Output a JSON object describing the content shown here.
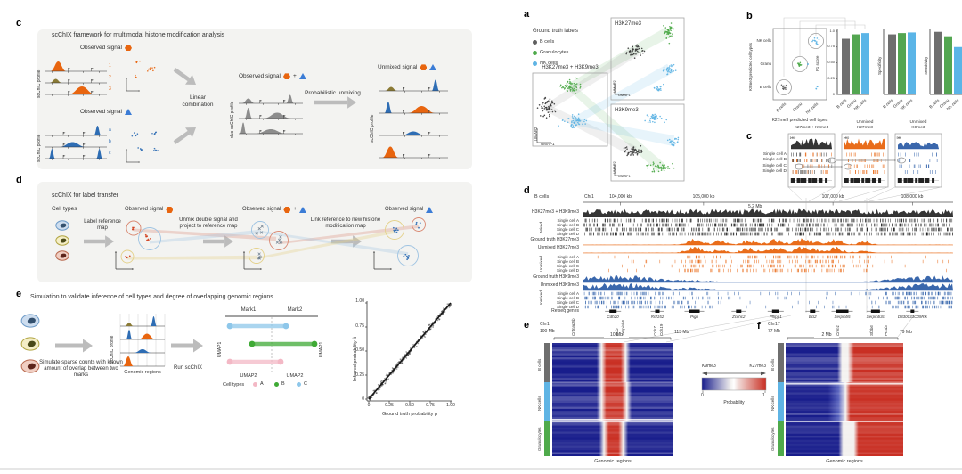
{
  "colors": {
    "orange": "#e8650f",
    "blue": "#3b7cd6",
    "mid_blue": "#2e6db4",
    "track_blue": "#2f5fa8",
    "olive": "#8a7a35",
    "green": "#4faa4b",
    "nk_blue": "#5fb4e4",
    "bcell_gray": "#6e6e6e",
    "pink": "#f3b8c5",
    "panel_bg": "#f3f3f1",
    "heat": {
      "B": "#181d8c",
      "W": "#f3f1ef",
      "R": "#c92f23",
      "L": "#5560bd"
    }
  },
  "lc": {
    "panel": "c",
    "title": "scChIX framework for multimodal histone modification analysis",
    "observed": "Observed signal",
    "plus": "+",
    "axis_profile": "scChIC profile",
    "axis_duo": "duo-scChIC profile",
    "ids1": [
      "1",
      "2",
      "3"
    ],
    "ids2": [
      "a",
      "b",
      "c"
    ],
    "linear": "Linear combination",
    "prob": "Probabilistic unmixing",
    "unmixed": "Unmixed signal"
  },
  "ld": {
    "panel": "d",
    "title": "scChIX for label transfer",
    "cell_types": "Cell types",
    "step1": "Label reference map",
    "step2": "Unmix double signal and project to reference map",
    "step3": "Link reference to new histone modification map",
    "observed": "Observed signal",
    "plus": "+"
  },
  "le": {
    "panel": "e",
    "title": "Simulation to validate inference of cell types and degree of overlapping genomic regions",
    "sim": "Simulate sparse counts with known amount of overlap between two marks",
    "axis_profile": "scChIC profile",
    "genomic": "Genomic regions",
    "run": "Run scChIX",
    "mark1": "Mark1",
    "mark2": "Mark2",
    "umap1": "UMAP1",
    "umap2": "UMAP2",
    "cell_types": "Cell types",
    "ct": [
      {
        "label": "A",
        "color": "#f3b8c5"
      },
      {
        "label": "B",
        "color": "#3faa35"
      },
      {
        "label": "C",
        "color": "#8ec7ea"
      }
    ],
    "sc": {
      "ylabel": "Inferred probability p̂",
      "xlabel": "Ground truth probability p",
      "yticks": [
        "1.00",
        "0.75",
        "0.50",
        "0.25",
        "0"
      ],
      "xticks": [
        "0",
        "0.25",
        "0.50",
        "0.75",
        "1.00"
      ]
    }
  },
  "ra": {
    "panel": "a",
    "legend_title": "Ground truth labels",
    "legend": [
      {
        "label": "B cells",
        "color": "#5f5f5f"
      },
      {
        "label": "Granulocytes",
        "color": "#4faa4b"
      },
      {
        "label": "NK cells",
        "color": "#5fb4e4"
      }
    ],
    "double_title": "H3K27me3 + H3K9me3",
    "k27": "H3K27me3",
    "k9": "H3K9me3",
    "umap1": "UMAP1",
    "umap2": "UMAP2"
  },
  "rb": {
    "panel": "b",
    "ylabel": "K9me3 predicted cell types",
    "xlabel": "K27me3 predicted cell types",
    "yticks": [
      "NK cells",
      "Granu",
      "B cells"
    ],
    "xticks": [
      "B cells",
      "Granu",
      "NK cells"
    ],
    "yticknums": [
      "1.0",
      "0.75",
      "0.50",
      "0.25",
      "0"
    ]
  },
  "rc": {
    "panel": "c",
    "cells": [
      "Single cell A",
      "Single cell B",
      "Single cell C",
      "Single cell D"
    ],
    "b1": {
      "t1": "K27me3 + K9me3",
      "ymax": "100"
    },
    "b2": {
      "t1": "Unmixed",
      "t2": "K27me3",
      "ymax": "100"
    },
    "b3": {
      "t1": "Unmixed",
      "t2": "K9me3",
      "ymax": "50"
    }
  },
  "rd": {
    "panel": "d",
    "cell": "B cells",
    "chrom": "Chr1",
    "coords": [
      "104,000 kb",
      "105,000 kb",
      "107,000 kb",
      "108,000 kb"
    ],
    "span": "5.2 Mb",
    "t_mix": "H3K27me3 + H3K9me3",
    "g_mixed": "Mixed",
    "g_unmixed": "Unmixed",
    "singles": [
      "Single cell A",
      "Single cell B",
      "Single cell C",
      "Single cell D"
    ],
    "t_gt27": "Ground truth H3K27me3",
    "t_um27": "Unmixed H3K27me3",
    "t_gt9": "Ground truth H3K9me3",
    "t_um9": "Unmixed H3K9me3",
    "refseq": "Refseq genes",
    "genes": [
      "Cdh20",
      "Rnf152",
      "Pign",
      "Zcchc2",
      "Phlpp1",
      "Bcl2",
      "Serpinb5",
      "Serpinb3c",
      "D830033C09Rik"
    ]
  },
  "re": {
    "panel": "e",
    "chrom": "Chr1",
    "start": "100 Mb",
    "end": "113 Mb",
    "scale": "10 Mb",
    "genes": [
      "Cntnap5b",
      "Bcl2",
      "Serpinb5",
      "Cdh7",
      "Cdh19"
    ],
    "rows": [
      "B cells",
      "NK cells",
      "Granulocytes"
    ],
    "xlabel": "Genomic regions"
  },
  "legend_bar": {
    "left": "K9me3",
    "right": "K27me3",
    "t0": "0",
    "t1": "1",
    "label": "Probability"
  },
  "rf": {
    "panel": "f",
    "chrom": "Chr17",
    "start": "77 Mb",
    "end": "79 Mb",
    "scale": "2 Mb",
    "genes": [
      "Crim1",
      "Sf3b6",
      "Prkd3"
    ],
    "rows": [
      "B cells",
      "NK cells",
      "Granulocytes"
    ],
    "xlabel": "Genomic regions"
  },
  "chart_data": [
    {
      "type": "bar",
      "panel": "b1",
      "ylabel": "F1 score",
      "categories": [
        "B cells",
        "Granu",
        "NK cells"
      ],
      "values": [
        0.88,
        0.95,
        0.97
      ],
      "ylim": [
        0,
        1
      ],
      "colors": [
        "#6e6e6e",
        "#53a651",
        "#5bb5e7"
      ]
    },
    {
      "type": "bar",
      "panel": "b2",
      "ylabel": "Specificity",
      "categories": [
        "B cells",
        "Granu",
        "NK cells"
      ],
      "values": [
        0.95,
        0.97,
        0.98
      ],
      "ylim": [
        0,
        1
      ],
      "colors": [
        "#6e6e6e",
        "#53a651",
        "#5bb5e7"
      ]
    },
    {
      "type": "bar",
      "panel": "b3",
      "ylabel": "Sensitivity",
      "categories": [
        "B cells",
        "Granu",
        "NK cells"
      ],
      "values": [
        0.99,
        0.92,
        0.75
      ],
      "ylim": [
        0,
        1
      ],
      "colors": [
        "#6e6e6e",
        "#53a651",
        "#5bb5e7"
      ]
    },
    {
      "type": "scatter",
      "panel": "b-matrix",
      "xlabel": "K27me3 predicted cell types",
      "ylabel": "K9me3 predicted cell types",
      "points": [
        {
          "x": "B cells",
          "y": "B cells",
          "cluster": "B cells"
        },
        {
          "x": "Granu",
          "y": "Granu",
          "cluster": "Granulocytes"
        },
        {
          "x": "NK cells",
          "y": "NK cells",
          "cluster": "NK cells"
        },
        {
          "x": "NK cells",
          "y": "B cells",
          "cluster": "few misassigned NK cells"
        }
      ]
    },
    {
      "type": "scatter",
      "panel": "e-left",
      "xlabel": "Ground truth probability p",
      "ylabel": "Inferred probability p̂",
      "xlim": [
        0,
        1
      ],
      "ylim": [
        0,
        1
      ],
      "xticks": [
        0,
        0.25,
        0.5,
        0.75,
        1
      ],
      "yticks": [
        0,
        0.25,
        0.5,
        0.75,
        1
      ],
      "relation": "dense point cloud on the identity line y = x (inferred ≈ ground truth)"
    },
    {
      "type": "heatmap",
      "panel": "e",
      "title": "K9me3 vs K27me3 probability, Chr1 100-113 Mb",
      "rows": [
        "B cells",
        "NK cells",
        "Granulocytes"
      ],
      "xlabel": "Genomic regions",
      "colorbar": {
        "label": "Probability",
        "min": 0,
        "max": 1,
        "low": "K9me3",
        "high": "K27me3"
      },
      "row_stops": {
        "B cells": [
          [
            0,
            "B"
          ],
          [
            0.37,
            "B"
          ],
          [
            0.41,
            "W"
          ],
          [
            0.45,
            "R"
          ],
          [
            0.57,
            "R"
          ],
          [
            0.61,
            "W"
          ],
          [
            0.65,
            "B"
          ],
          [
            1,
            "B"
          ]
        ],
        "NK cells": [
          [
            0,
            "B"
          ],
          [
            0.37,
            "B"
          ],
          [
            0.41,
            "W"
          ],
          [
            0.45,
            "R"
          ],
          [
            0.58,
            "R"
          ],
          [
            0.62,
            "W"
          ],
          [
            0.66,
            "B"
          ],
          [
            1,
            "B"
          ]
        ],
        "Granulocytes": [
          [
            0,
            "B"
          ],
          [
            0.39,
            "B"
          ],
          [
            0.43,
            "W"
          ],
          [
            0.47,
            "R"
          ],
          [
            0.55,
            "R"
          ],
          [
            0.59,
            "W"
          ],
          [
            0.63,
            "B"
          ],
          [
            1,
            "B"
          ]
        ]
      },
      "summary": "mostly K9me3 (blue) with a K27me3 (red) domain over Bcl2/Serpinb5"
    },
    {
      "type": "heatmap",
      "panel": "f",
      "title": "K9me3 vs K27me3 probability, Chr17 77-79 Mb",
      "rows": [
        "B cells",
        "NK cells",
        "Granulocytes"
      ],
      "xlabel": "Genomic regions",
      "row_stops": {
        "B cells": [
          [
            0,
            "B"
          ],
          [
            0.44,
            "B"
          ],
          [
            0.48,
            "W"
          ],
          [
            0.53,
            "W"
          ],
          [
            0.58,
            "R"
          ],
          [
            1,
            "R"
          ]
        ],
        "NK cells": [
          [
            0,
            "B"
          ],
          [
            0.36,
            "B"
          ],
          [
            0.45,
            "L"
          ],
          [
            0.51,
            "W"
          ],
          [
            0.55,
            "R"
          ],
          [
            1,
            "R"
          ]
        ],
        "Granulocytes": [
          [
            0,
            "B"
          ],
          [
            0.45,
            "B"
          ],
          [
            0.49,
            "W"
          ],
          [
            0.58,
            "W"
          ],
          [
            0.62,
            "R"
          ],
          [
            1,
            "R"
          ]
        ]
      },
      "summary": "left half K9me3 (blue), right half K27me3 (red) across Crim1/Sf3b6/Prkd3"
    },
    {
      "type": "scatter",
      "panel": "e-left-umap",
      "title": "UMAP dumbbells linking Mark1 and Mark2 clusters",
      "series": [
        {
          "name": "C",
          "color": "#8ec7ea"
        },
        {
          "name": "B",
          "color": "#3faa35"
        },
        {
          "name": "A",
          "color": "#f3b8c5"
        }
      ]
    }
  ]
}
